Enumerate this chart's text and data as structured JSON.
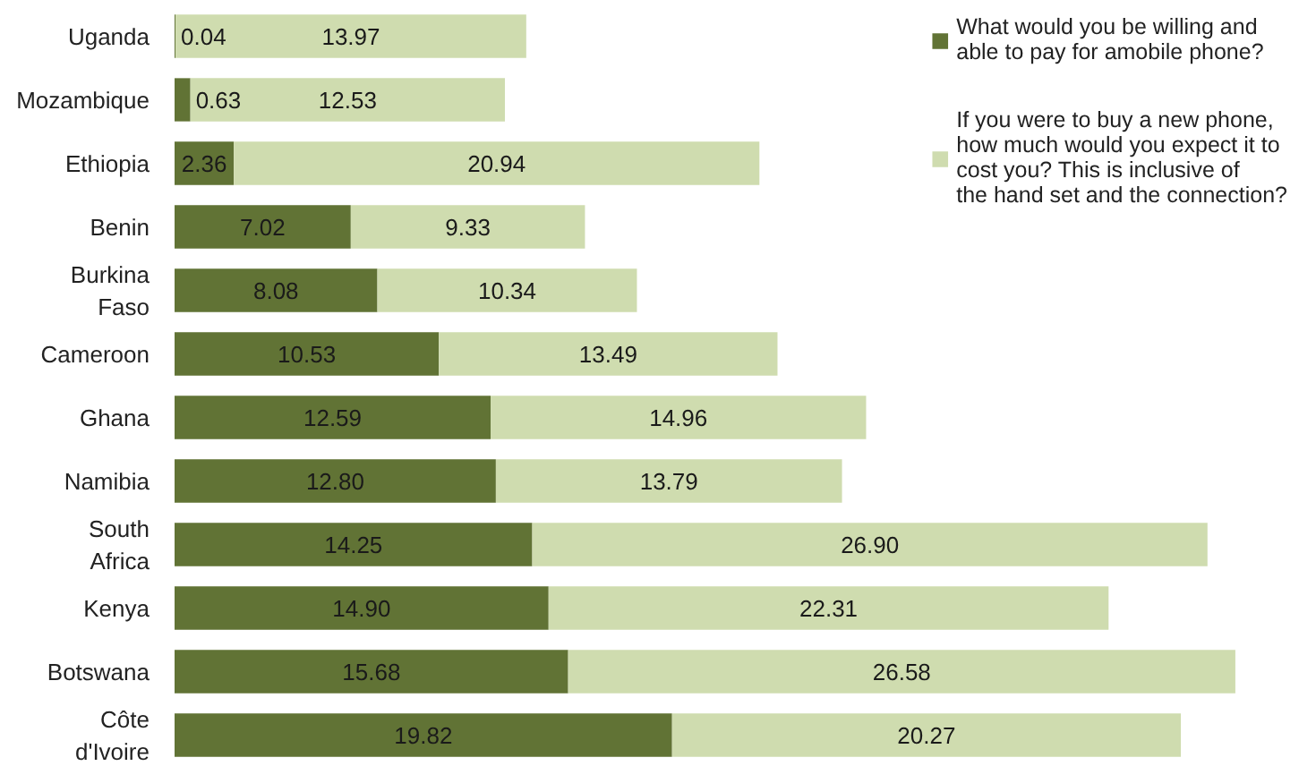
{
  "chart_data": {
    "type": "bar",
    "orientation": "horizontal",
    "stacked": true,
    "categories": [
      "Uganda",
      "Mozambique",
      "Ethiopia",
      "Benin",
      "Burkina Faso",
      "Cameroon",
      "Ghana",
      "Namibia",
      "South Africa",
      "Kenya",
      "Botswana",
      "Côte d'Ivoire"
    ],
    "series": [
      {
        "name": "What would you be willing and able to pay for amobile phone?",
        "color": "#617335",
        "values": [
          0.04,
          0.63,
          2.36,
          7.02,
          8.08,
          10.53,
          12.59,
          12.8,
          14.25,
          14.9,
          15.68,
          19.82
        ],
        "value_labels": [
          "0.04",
          "0.63",
          "2.36",
          "7.02",
          "8.08",
          "10.53",
          "12.59",
          "12.80",
          "14.25",
          "14.90",
          "15.68",
          "19.82"
        ]
      },
      {
        "name": "If you were to buy a new phone, how much would you expect it to cost you? This is inclusive of the hand set and the connection?",
        "color": "#cfdcaf",
        "values": [
          13.97,
          12.53,
          20.94,
          9.33,
          10.34,
          13.49,
          14.96,
          13.79,
          26.9,
          22.31,
          26.58,
          20.27
        ],
        "value_labels": [
          "13.97",
          "12.53",
          "20.94",
          "9.33",
          "10.34",
          "13.49",
          "14.96",
          "13.79",
          "26.90",
          "22.31",
          "26.58",
          "20.27"
        ]
      }
    ],
    "legend": "top right",
    "grid": false
  }
}
